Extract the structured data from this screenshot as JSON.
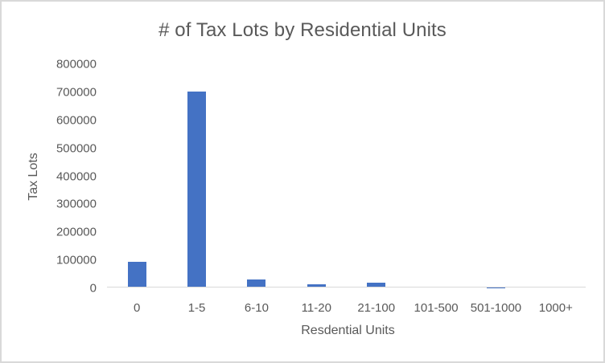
{
  "chart_data": {
    "type": "bar",
    "title": "# of Tax Lots by Residential Units",
    "xlabel": "Resdential Units",
    "ylabel": "Tax Lots",
    "categories": [
      "0",
      "1-5",
      "6-10",
      "11-20",
      "21-100",
      "101-500",
      "501-1000",
      "1000+"
    ],
    "values": [
      93000,
      699000,
      29000,
      11500,
      18000,
      4000,
      300,
      100
    ],
    "series": [
      {
        "name": "Tax Lots",
        "values": [
          93000,
          699000,
          29000,
          11500,
          18000,
          4000,
          300,
          100
        ],
        "color": "#4472c4"
      }
    ],
    "ylim": [
      0,
      800000
    ],
    "yticks": [
      "0",
      "100000",
      "200000",
      "300000",
      "400000",
      "500000",
      "600000",
      "700000",
      "800000"
    ],
    "grid": false,
    "legend": "none"
  },
  "colors": {
    "bar": "#4472c4",
    "text": "#595959",
    "axis_line": "#d9d9d9",
    "border": "#d9d9d9"
  }
}
